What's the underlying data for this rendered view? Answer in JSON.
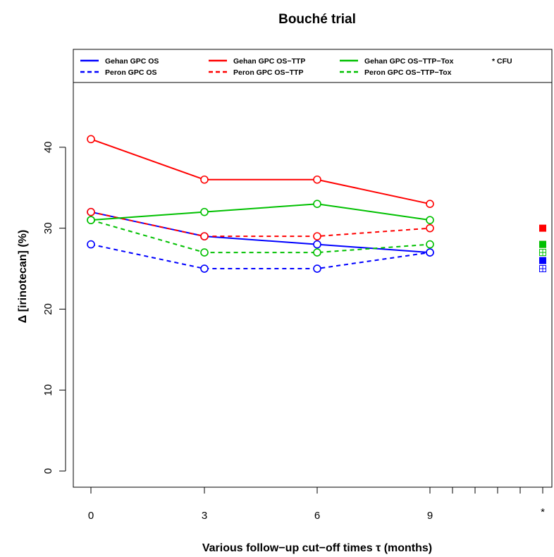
{
  "chart_data": {
    "type": "line",
    "title": "Bouché trial",
    "xlabel": "Various follow−up cut−off times τ (months)",
    "ylabel": "Δ [irinotecan] (%)",
    "x": [
      0,
      3,
      6,
      9
    ],
    "x_tick_labels": [
      "0",
      "3",
      "6",
      "9",
      "*"
    ],
    "y_ticks": [
      "0",
      "10",
      "20",
      "30",
      "40"
    ],
    "ylim": [
      -2,
      48
    ],
    "grid": false,
    "legend_position": "top",
    "series": [
      {
        "name": "Gehan GPC OS",
        "color": "#0000ff",
        "dashed": false,
        "values": [
          32,
          29,
          28,
          27
        ],
        "cfu": 26,
        "cfu_marker": "filled"
      },
      {
        "name": "Peron GPC OS",
        "color": "#0000ff",
        "dashed": true,
        "values": [
          28,
          25,
          25,
          27
        ],
        "cfu": 25,
        "cfu_marker": "grid"
      },
      {
        "name": "Gehan GPC OS−TTP",
        "color": "#ff0000",
        "dashed": false,
        "values": [
          41,
          36,
          36,
          33
        ],
        "cfu": 30,
        "cfu_marker": "filled"
      },
      {
        "name": "Peron GPC OS−TTP",
        "color": "#ff0000",
        "dashed": true,
        "values": [
          32,
          29,
          29,
          30
        ],
        "cfu": 28,
        "cfu_marker": "filled"
      },
      {
        "name": "Gehan GPC OS−TTP−Tox",
        "color": "#00c000",
        "dashed": false,
        "values": [
          31,
          32,
          33,
          31
        ],
        "cfu": 28,
        "cfu_marker": "filled"
      },
      {
        "name": "Peron GPC OS−TTP−Tox",
        "color": "#00c000",
        "dashed": true,
        "values": [
          31,
          27,
          27,
          28
        ],
        "cfu": 27,
        "cfu_marker": "grid"
      }
    ],
    "legend_note": "* CFU"
  }
}
